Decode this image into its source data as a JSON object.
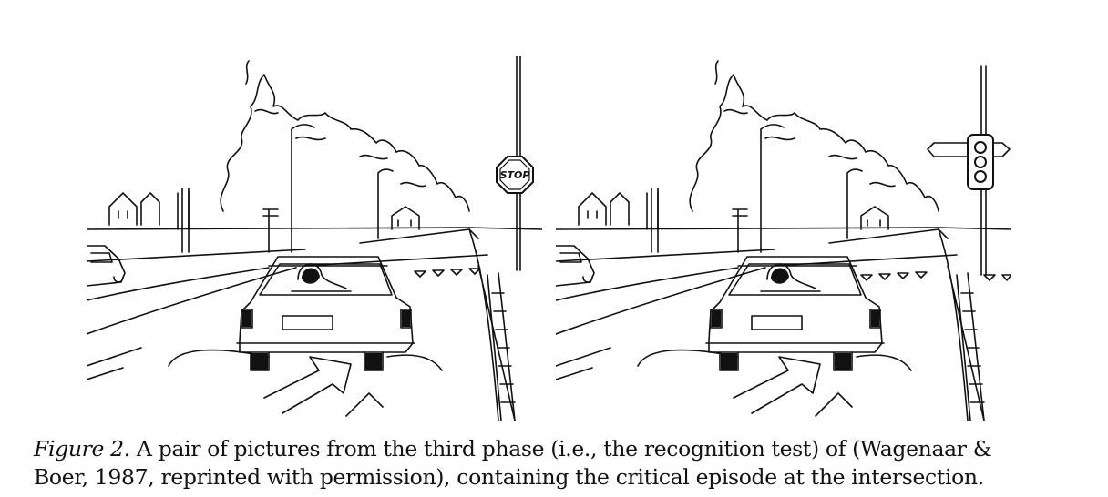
{
  "figure": {
    "label": "Figure 2.",
    "caption_line1": "A pair of pictures from the third phase (i.e., the recognition test) of (Wagenaar &",
    "caption_line2": "Boer, 1987, reprinted with permission), containing the critical episode at the intersection.",
    "left_panel": {
      "sign_text": "STOP"
    },
    "right_panel": {
      "sign_text": ""
    }
  }
}
